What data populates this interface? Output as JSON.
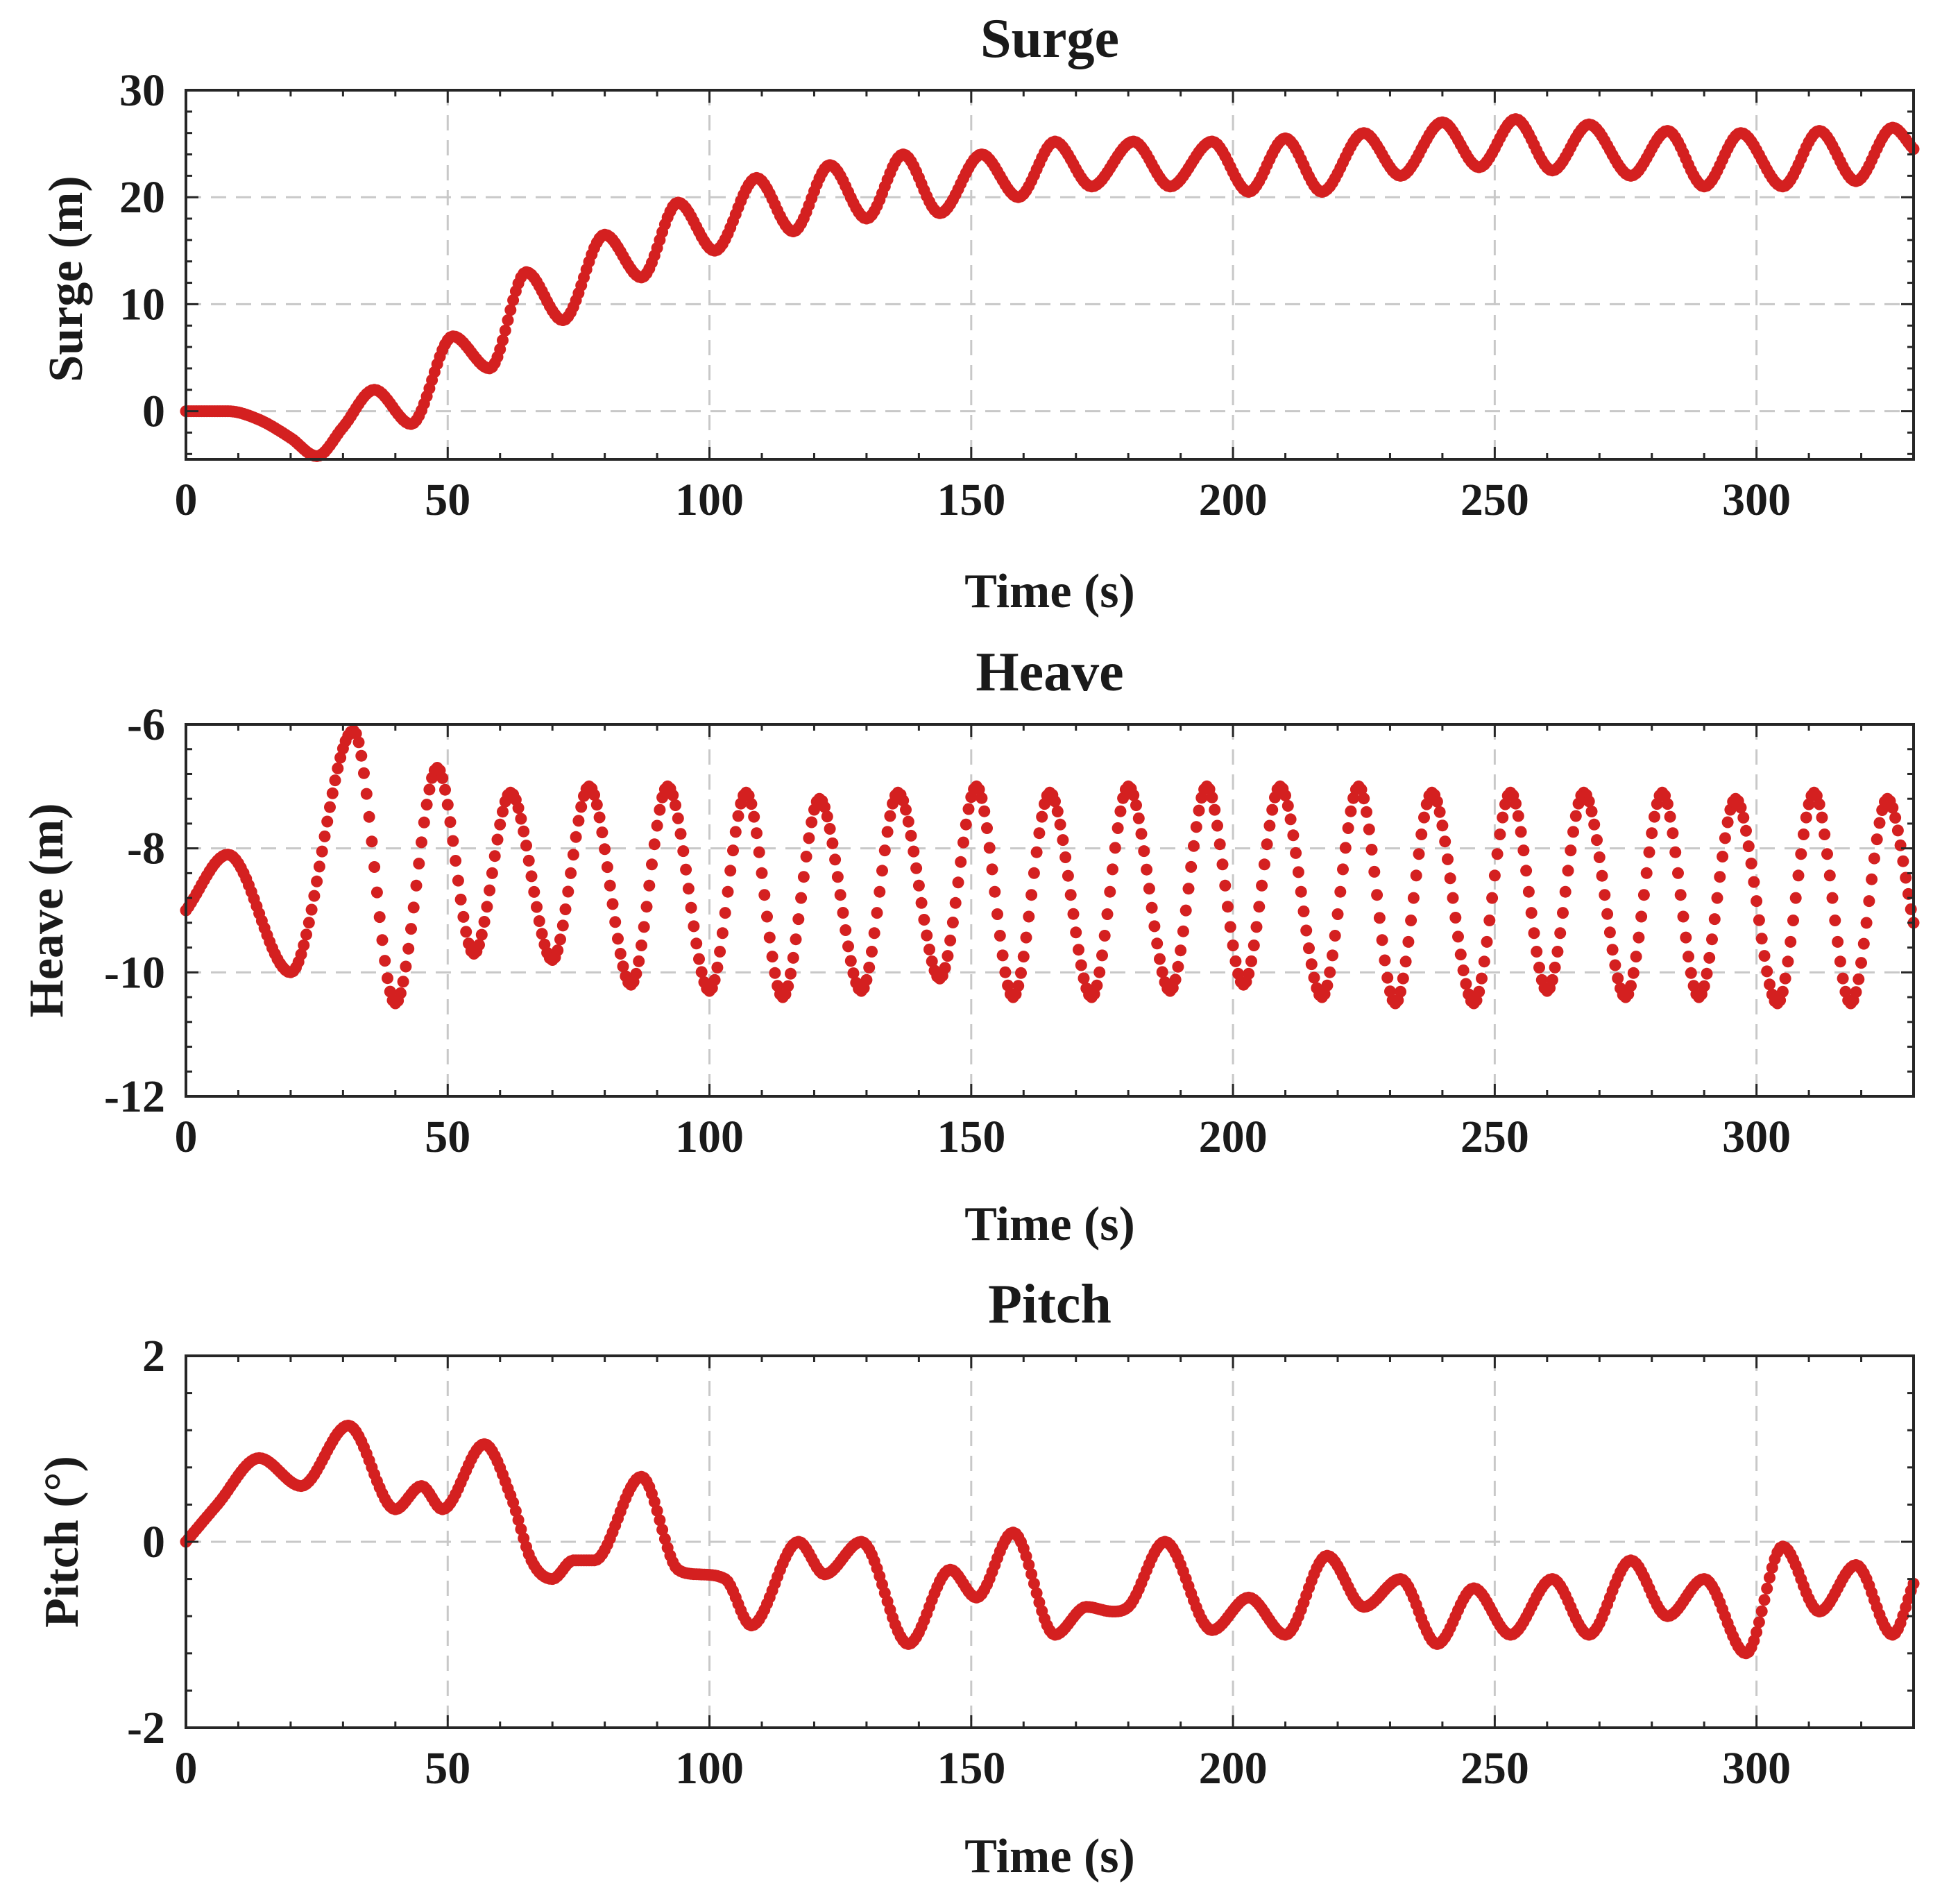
{
  "chart_data": [
    {
      "type": "scatter",
      "title": "Surge",
      "xlabel": "Time (s)",
      "ylabel": "Surge (m)",
      "xlim": [
        0,
        330
      ],
      "ylim": [
        -4.5,
        30
      ],
      "xticks": [
        0,
        50,
        100,
        150,
        200,
        250,
        300
      ],
      "yticks": [
        0,
        10,
        20,
        30
      ],
      "xtick_labels": [
        "0",
        "50",
        "100",
        "150",
        "200",
        "250",
        "300"
      ],
      "ytick_labels": [
        "0",
        "10",
        "20",
        "30"
      ],
      "grid": true,
      "marker_color": "#d42020",
      "series": [
        {
          "name": "Surge",
          "x": [
            0,
            8,
            14,
            20,
            25,
            30,
            36,
            43,
            51,
            58,
            65,
            72,
            80,
            87,
            94,
            101,
            109,
            116,
            123,
            130,
            137,
            144,
            152,
            159,
            166,
            173,
            181,
            188,
            196,
            203,
            210,
            217,
            225,
            232,
            240,
            247,
            254,
            261,
            268,
            276,
            283,
            290,
            297,
            305,
            312,
            319,
            326,
            330
          ],
          "y": [
            0,
            0,
            -0.8,
            -2.5,
            -4.2,
            -1.5,
            2.0,
            -1.2,
            7.0,
            4.0,
            13.0,
            8.5,
            16.5,
            12.5,
            19.5,
            15.0,
            21.8,
            16.8,
            23.0,
            18.0,
            24.0,
            18.5,
            24.0,
            20.0,
            25.2,
            21.0,
            25.2,
            21.0,
            25.2,
            20.5,
            25.5,
            20.5,
            26.0,
            22.0,
            27.0,
            22.8,
            27.3,
            22.5,
            26.8,
            22.0,
            26.2,
            21.0,
            26.0,
            21.0,
            26.2,
            21.5,
            26.5,
            24.5
          ]
        }
      ]
    },
    {
      "type": "scatter",
      "title": "Heave",
      "xlabel": "Time (s)",
      "ylabel": "Heave (m)",
      "xlim": [
        0,
        330
      ],
      "ylim": [
        -12,
        -6
      ],
      "xticks": [
        0,
        50,
        100,
        150,
        200,
        250,
        300
      ],
      "yticks": [
        -12,
        -10,
        -8,
        -6
      ],
      "xtick_labels": [
        "0",
        "50",
        "100",
        "150",
        "200",
        "250",
        "300"
      ],
      "ytick_labels": [
        "-12",
        "-10",
        "-8",
        "-6"
      ],
      "grid": true,
      "marker_color": "#d42020",
      "series": [
        {
          "name": "Heave",
          "x": [
            0,
            8,
            20,
            32,
            40,
            48,
            55,
            62,
            70,
            77,
            85,
            92,
            100,
            107,
            114,
            121,
            129,
            136,
            144,
            151,
            158,
            165,
            173,
            180,
            188,
            195,
            202,
            209,
            217,
            224,
            231,
            238,
            246,
            253,
            260,
            267,
            275,
            282,
            289,
            296,
            304,
            311,
            318,
            325,
            330
          ],
          "y": [
            -9.0,
            -8.1,
            -10.0,
            -6.1,
            -10.5,
            -6.7,
            -9.7,
            -7.1,
            -9.8,
            -7.0,
            -10.2,
            -7.0,
            -10.3,
            -7.1,
            -10.4,
            -7.2,
            -10.3,
            -7.1,
            -10.1,
            -7.0,
            -10.4,
            -7.1,
            -10.4,
            -7.0,
            -10.3,
            -7.0,
            -10.2,
            -7.0,
            -10.4,
            -7.0,
            -10.5,
            -7.1,
            -10.5,
            -7.1,
            -10.3,
            -7.1,
            -10.4,
            -7.1,
            -10.4,
            -7.2,
            -10.5,
            -7.1,
            -10.5,
            -7.2,
            -9.2
          ]
        }
      ]
    },
    {
      "type": "scatter",
      "title": "Pitch",
      "xlabel": "Time (s)",
      "ylabel": "Pitch (°)",
      "xlim": [
        0,
        330
      ],
      "ylim": [
        -2,
        2
      ],
      "xticks": [
        0,
        50,
        100,
        150,
        200,
        250,
        300
      ],
      "yticks": [
        -2,
        0,
        2
      ],
      "xtick_labels": [
        "0",
        "50",
        "100",
        "150",
        "200",
        "250",
        "300"
      ],
      "ytick_labels": [
        "-2",
        "0",
        "2"
      ],
      "grid": true,
      "marker_color": "#d42020",
      "series": [
        {
          "name": "Pitch",
          "x": [
            0,
            6,
            14,
            22,
            31,
            40,
            45,
            49,
            57,
            62,
            66,
            70,
            74,
            78,
            87,
            94,
            98,
            103,
            108,
            117,
            122,
            129,
            138,
            146,
            151,
            158,
            166,
            172,
            177,
            180,
            187,
            196,
            203,
            210,
            218,
            225,
            232,
            239,
            246,
            253,
            261,
            268,
            276,
            283,
            290,
            298,
            305,
            312,
            319,
            326,
            330
          ],
          "y": [
            0,
            0.4,
            0.9,
            0.6,
            1.25,
            0.35,
            0.6,
            0.35,
            1.05,
            0.5,
            -0.2,
            -0.4,
            -0.2,
            -0.2,
            0.7,
            -0.3,
            -0.35,
            -0.4,
            -0.9,
            0.0,
            -0.35,
            0.0,
            -1.1,
            -0.3,
            -0.6,
            0.1,
            -1.0,
            -0.7,
            -0.75,
            -0.7,
            0.0,
            -0.95,
            -0.6,
            -1.0,
            -0.15,
            -0.7,
            -0.4,
            -1.1,
            -0.5,
            -1.0,
            -0.4,
            -1.0,
            -0.2,
            -0.8,
            -0.4,
            -1.2,
            -0.05,
            -0.75,
            -0.25,
            -1.0,
            -0.45
          ]
        }
      ]
    }
  ]
}
